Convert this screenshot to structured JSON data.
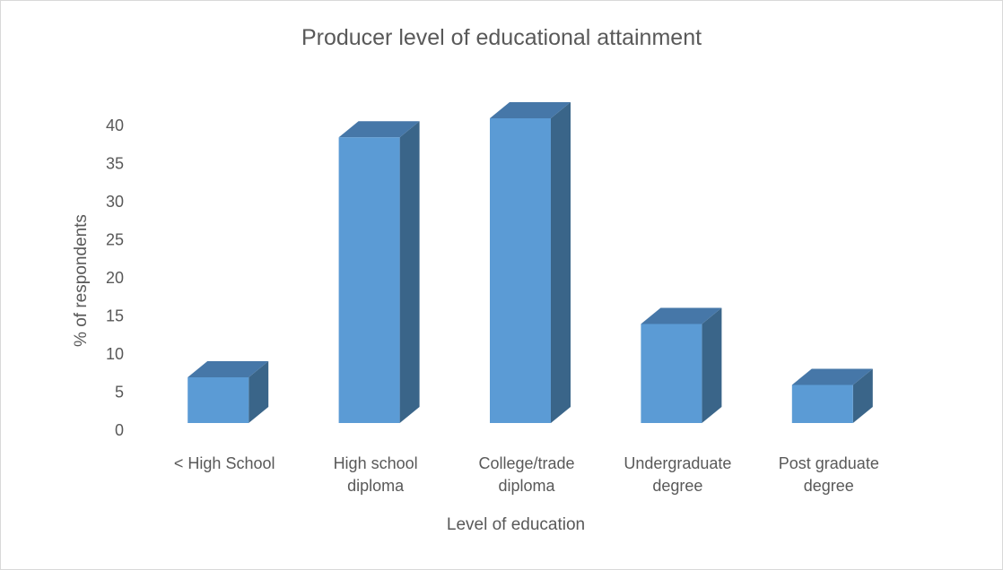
{
  "chart_data": {
    "type": "bar",
    "title": "Producer level of educational attainment",
    "xlabel": "Level of education",
    "ylabel": "% of respondents",
    "categories": [
      [
        "< High School"
      ],
      [
        "High school",
        "diploma"
      ],
      [
        "College/trade",
        "diploma"
      ],
      [
        "Undergraduate",
        "degree"
      ],
      [
        "Post graduate",
        "degree"
      ]
    ],
    "values": [
      6,
      37.5,
      40,
      13,
      5
    ],
    "ylim": [
      0,
      40
    ],
    "yticks": [
      "0",
      "5",
      "10",
      "15",
      "20",
      "25",
      "30",
      "35",
      "40"
    ],
    "grid": false,
    "style": "3d-column",
    "colors": {
      "front": "#5b9bd5",
      "side": "#3a6589",
      "top": "#4677a8"
    }
  }
}
